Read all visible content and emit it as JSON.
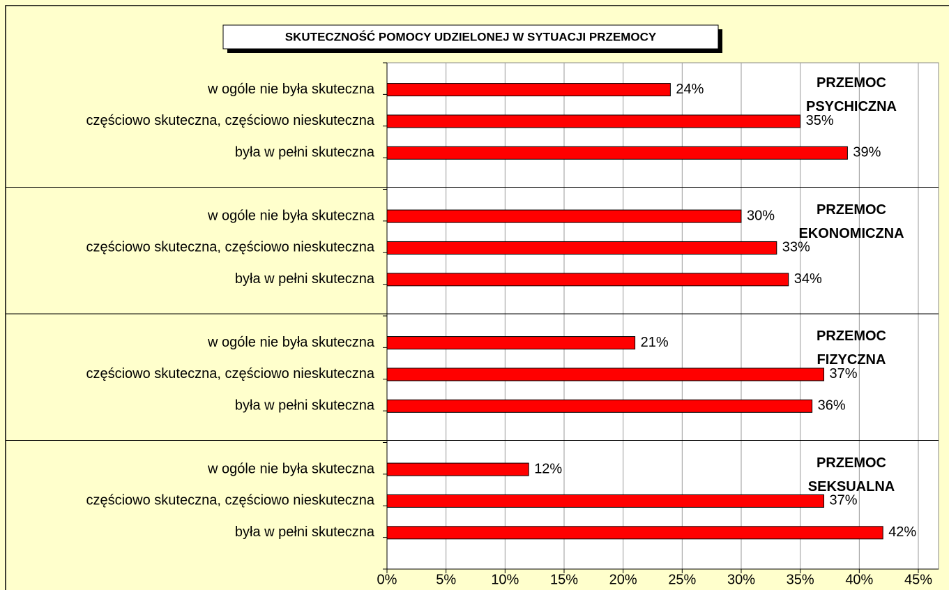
{
  "chart_data": {
    "type": "bar",
    "orientation": "horizontal",
    "title": "SKUTECZNOŚĆ POMOCY UDZIELONEJ W SYTUACJI PRZEMOCY",
    "categories": [
      "w ogóle nie była skuteczna",
      "częściowo skuteczna, częściowo nieskuteczna",
      "była w pełni skuteczna"
    ],
    "groups": [
      {
        "name": "PRZEMOC PSYCHICZNA",
        "values": [
          24,
          35,
          39
        ],
        "value_labels": [
          "24%",
          "35%",
          "39%"
        ]
      },
      {
        "name": "PRZEMOC EKONOMICZNA",
        "values": [
          30,
          33,
          34
        ],
        "value_labels": [
          "30%",
          "33%",
          "34%"
        ]
      },
      {
        "name": "PRZEMOC FIZYCZNA",
        "values": [
          21,
          37,
          36
        ],
        "value_labels": [
          "21%",
          "37%",
          "36%"
        ]
      },
      {
        "name": "PRZEMOC SEKSUALNA",
        "values": [
          12,
          37,
          42
        ],
        "value_labels": [
          "12%",
          "37%",
          "42%"
        ]
      }
    ],
    "color": "#ff0000",
    "xlim": [
      0,
      45
    ],
    "xticks": [
      {
        "value": 0,
        "label": "0%"
      },
      {
        "value": 5,
        "label": "5%"
      },
      {
        "value": 10,
        "label": "10%"
      },
      {
        "value": 15,
        "label": "15%"
      },
      {
        "value": 20,
        "label": "20%"
      },
      {
        "value": 25,
        "label": "25%"
      },
      {
        "value": 30,
        "label": "30%"
      },
      {
        "value": 35,
        "label": "35%"
      },
      {
        "value": 40,
        "label": "40%"
      },
      {
        "value": 45,
        "label": "45%"
      }
    ],
    "grid": true
  }
}
